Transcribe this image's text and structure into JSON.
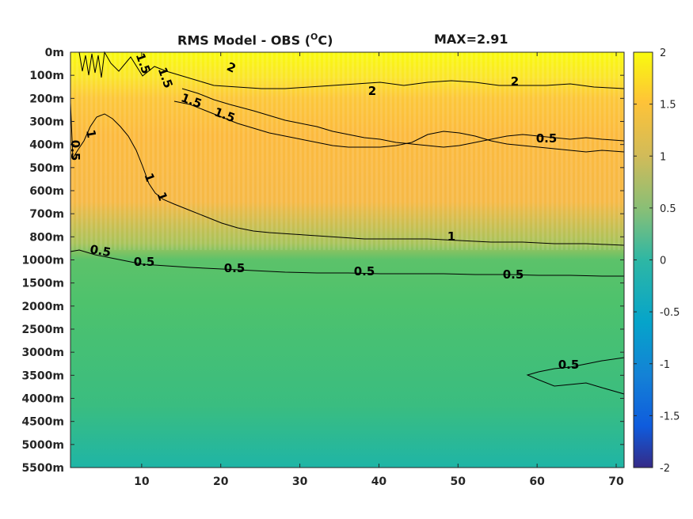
{
  "title": {
    "left": "RMS Model - OBS (",
    "sup": "O",
    "unit": "C)",
    "right": "MAX=2.91"
  },
  "chart_data": {
    "type": "heatmap",
    "x": {
      "range": [
        1,
        71
      ],
      "ticks": [
        10,
        20,
        30,
        40,
        50,
        60,
        70
      ]
    },
    "y": {
      "ticks": [
        "0m",
        "100m",
        "200m",
        "300m",
        "400m",
        "500m",
        "600m",
        "700m",
        "800m",
        "1000m",
        "1500m",
        "2000m",
        "2500m",
        "3000m",
        "3500m",
        "4000m",
        "4500m",
        "5000m",
        "5500m"
      ],
      "reversed": true
    },
    "colorbar": {
      "range": [
        -2,
        2
      ],
      "ticks": [
        2,
        1.5,
        1,
        0.5,
        0,
        -0.5,
        -1,
        -1.5,
        -2
      ],
      "colormap": "parula"
    },
    "contour_labels": [
      "1.5",
      "1.5",
      "2",
      "2",
      "1.5",
      "1.5",
      "2",
      "1",
      "1",
      "1",
      "1",
      "0.5",
      "0.5",
      "0.5",
      "0.5",
      "0.5",
      "0.5",
      "0.5",
      "0.5"
    ],
    "colors": {
      "high": "#f9fb0e",
      "upper": "#fcbc3d",
      "mid": "#4ac16d",
      "low": "#1fb5a6"
    }
  }
}
